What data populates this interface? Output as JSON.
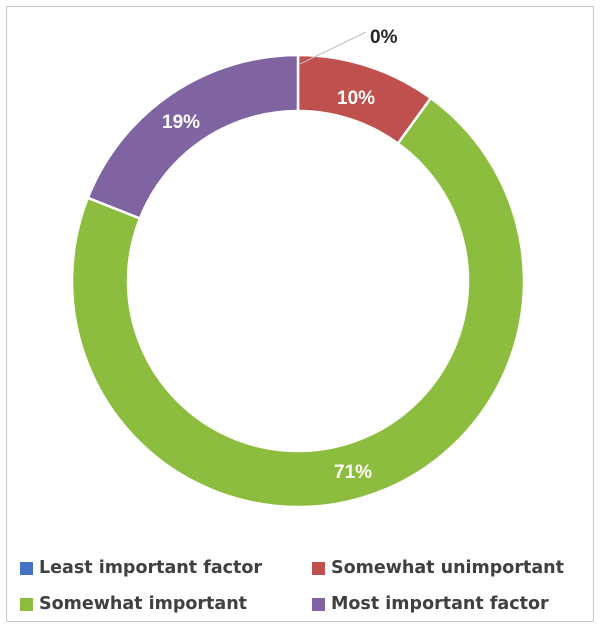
{
  "chart_data": {
    "type": "pie",
    "donut": true,
    "title": "",
    "slices": [
      {
        "label": "Least important factor",
        "value": 0,
        "display": "0%",
        "color": "#4472c4"
      },
      {
        "label": "Somewhat unimportant",
        "value": 10,
        "display": "10%",
        "color": "#c0504d"
      },
      {
        "label": "Somewhat important",
        "value": 71,
        "display": "71%",
        "color": "#8cbd3f"
      },
      {
        "label": "Most important factor",
        "value": 19,
        "display": "19%",
        "color": "#8064a2"
      }
    ],
    "legend_position": "bottom"
  }
}
